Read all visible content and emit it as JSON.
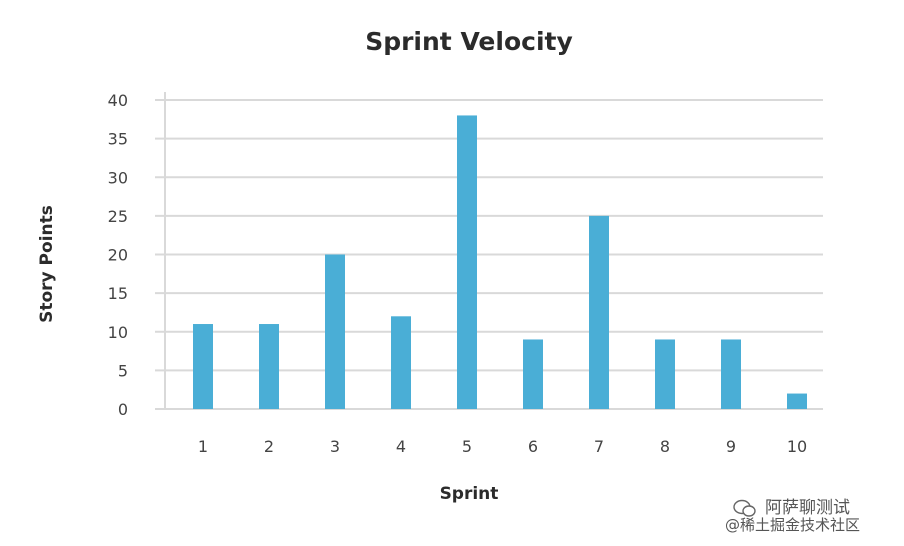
{
  "chart_data": {
    "type": "bar",
    "title": "Sprint Velocity",
    "xlabel": "Sprint",
    "ylabel": "Story Points",
    "categories": [
      "1",
      "2",
      "3",
      "4",
      "5",
      "6",
      "7",
      "8",
      "9",
      "10"
    ],
    "values": [
      11,
      11,
      20,
      12,
      38,
      9,
      25,
      9,
      9,
      2
    ],
    "ylim": [
      0,
      40
    ],
    "yticks": [
      0,
      5,
      10,
      15,
      20,
      25,
      30,
      35,
      40
    ],
    "grid": true,
    "bar_color": "#4aaed6"
  },
  "watermark": {
    "line1": "阿萨聊测试",
    "line2": "@稀土掘金技术社区"
  }
}
